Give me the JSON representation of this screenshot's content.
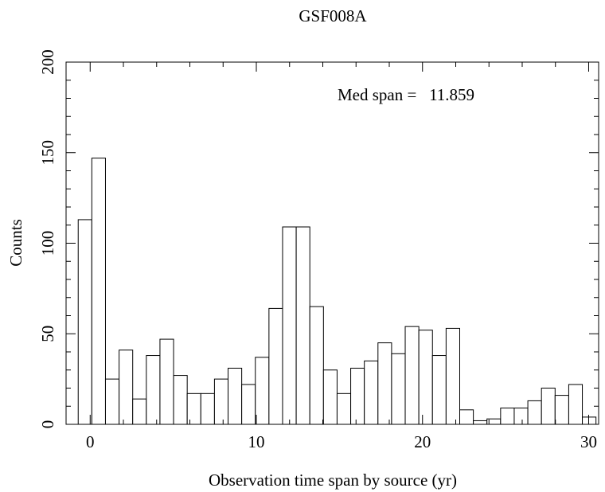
{
  "chart_data": {
    "type": "histogram",
    "title": "GSF008A",
    "xlabel": "Observation time span by source (yr)",
    "ylabel": "Counts",
    "annotation": "Med span =   11.859",
    "bins": [
      -0.72,
      0.1,
      0.92,
      1.74,
      2.56,
      3.38,
      4.2,
      5.02,
      5.84,
      6.66,
      7.48,
      8.3,
      9.12,
      9.94,
      10.76,
      11.58,
      12.4,
      13.22,
      14.04,
      14.86,
      15.68,
      16.5,
      17.32,
      18.14,
      18.96,
      19.78,
      20.6,
      21.42,
      22.24,
      23.06,
      23.88,
      24.7,
      25.52,
      26.34,
      27.16,
      27.98,
      28.8,
      29.62,
      30.44
    ],
    "values": [
      113,
      147,
      25,
      41,
      14,
      38,
      47,
      27,
      17,
      17,
      25,
      31,
      22,
      37,
      64,
      109,
      109,
      65,
      30,
      17,
      31,
      35,
      45,
      39,
      54,
      52,
      38,
      53,
      8,
      2,
      3,
      9,
      9,
      13,
      20,
      16,
      22,
      4
    ],
    "color": "#ffffff",
    "edgecolor": "#000000",
    "xlim": [
      -1.45,
      30.6
    ],
    "ylim": [
      0,
      200
    ],
    "xticks": [
      0,
      10,
      20,
      30
    ],
    "yticks": [
      0,
      50,
      100,
      150,
      200
    ],
    "x_minor_ticks": [
      2,
      4,
      6,
      8,
      12,
      14,
      16,
      18,
      22,
      24,
      26,
      28
    ],
    "y_minor_ticks": [
      10,
      20,
      30,
      40,
      60,
      70,
      80,
      90,
      110,
      120,
      130,
      140,
      160,
      170,
      180,
      190
    ]
  }
}
